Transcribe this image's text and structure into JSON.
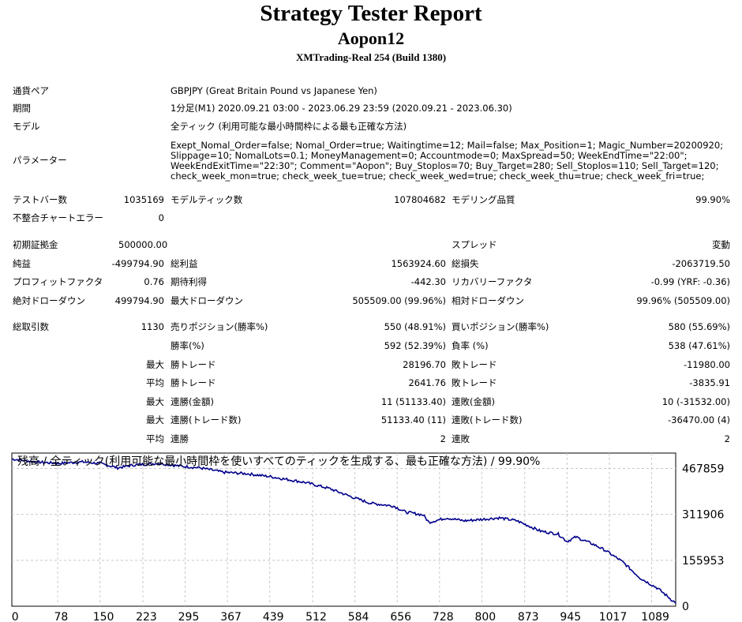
{
  "header": {
    "title": "Strategy Tester Report",
    "ea_name": "Aopon12",
    "server": "XMTrading-Real 254 (Build 1380)"
  },
  "info": {
    "symbol_label": "通貨ペア",
    "symbol_value": "GBPJPY (Great Britain Pound vs Japanese Yen)",
    "period_label": "期間",
    "period_value": "1分足(M1) 2020.09.21 03:00 - 2023.06.29 23:59 (2020.09.21 - 2023.06.30)",
    "model_label": "モデル",
    "model_value": "全ティック (利用可能な最小時間枠による最も正確な方法)",
    "params_label": "パラメーター",
    "params_lines": [
      "Exept_Nomal_Order=false; Nomal_Order=true; Waitingtime=12; Mail=false; Max_Position=1; Magic_Number=20200920;",
      "Slippage=10; NomalLots=0.1; MoneyManagement=0; Accountmode=0; MaxSpread=50; WeekEndTime=\"22:00\";",
      "WeekEndExitTime=\"22:30\"; Comment=\"Aopon\"; Buy_Stoplos=70; Buy_Target=280; Sell_Stoplos=110; Sell_Target=120;",
      "check_week_mon=true; check_week_tue=true; check_week_wed=true; check_week_thu=true; check_week_fri=true;"
    ]
  },
  "stats": {
    "bars_label": "テストバー数",
    "bars": "1035169",
    "ticks_label": "モデルティック数",
    "ticks": "107804682",
    "quality_label": "モデリング品質",
    "quality": "99.90%",
    "mismatch_label": "不整合チャートエラー",
    "mismatch": "0",
    "deposit_label": "初期証拠金",
    "deposit": "500000.00",
    "spread_label": "スプレッド",
    "spread": "変動",
    "net_label": "純益",
    "net": "-499794.90",
    "gross_profit_label": "総利益",
    "gross_profit": "1563924.60",
    "gross_loss_label": "総損失",
    "gross_loss": "-2063719.50",
    "pf_label": "プロフィットファクタ",
    "pf": "0.76",
    "expected_label": "期待利得",
    "expected": "-442.30",
    "recovery_label": "リカバリーファクタ",
    "recovery": "-0.99 (YRF: -0.36)",
    "abs_dd_label": "絶対ドローダウン",
    "abs_dd": "499794.90",
    "max_dd_label": "最大ドローダウン",
    "max_dd": "505509.00 (99.96%)",
    "rel_dd_label": "相対ドローダウン",
    "rel_dd": "99.96% (505509.00)",
    "trades_label": "総取引数",
    "trades": "1130",
    "short_label": "売りポジション(勝率%)",
    "short": "550 (48.91%)",
    "long_label": "買いポジション(勝率%)",
    "long": "580 (55.69%)",
    "win_rate_label": "勝率(%)",
    "win_rate": "592 (52.39%)",
    "loss_rate_label": "負率 (%)",
    "loss_rate": "538 (47.61%)",
    "max_prefix": "最大",
    "avg_prefix": "平均",
    "largest_win_label": "勝トレード",
    "largest_win": "28196.70",
    "largest_loss_label": "敗トレード",
    "largest_loss": "-11980.00",
    "avg_win_label": "勝トレード",
    "avg_win": "2641.76",
    "avg_loss_label": "敗トレード",
    "avg_loss": "-3835.91",
    "max_cons_wins_amt_label": "連勝(金額)",
    "max_cons_wins_amt": "11 (51133.40)",
    "max_cons_losses_amt_label": "連敗(金額)",
    "max_cons_losses_amt": "10 (-31532.00)",
    "max_cons_wins_cnt_label": "連勝(トレード数)",
    "max_cons_wins_cnt": "51133.40 (11)",
    "max_cons_losses_cnt_label": "連敗(トレード数)",
    "max_cons_losses_cnt": "-36470.00 (4)",
    "avg_cons_wins_label": "連勝",
    "avg_cons_wins": "2",
    "avg_cons_losses_label": "連敗",
    "avg_cons_losses": "2"
  },
  "chart_data": {
    "type": "line",
    "title": "残高 / 全ティック(利用可能な最小時間枠を使いすべてのティックを生成する、最も正確な方法) / 99.90%",
    "x_ticks": [
      "0",
      "78",
      "150",
      "223",
      "295",
      "367",
      "439",
      "512",
      "584",
      "656",
      "728",
      "800",
      "873",
      "945",
      "1017",
      "1089"
    ],
    "y_ticks": [
      "467859",
      "311906",
      "155953",
      "0"
    ],
    "xlim": [
      0,
      1130
    ],
    "ylim": [
      0,
      520000
    ],
    "grid": true,
    "line_color": "#00008B",
    "series": [
      {
        "x": [
          0,
          40,
          80,
          120,
          150,
          180,
          210,
          250,
          290,
          320,
          360,
          400,
          440,
          470,
          500,
          540,
          580,
          610,
          650,
          670,
          700,
          710,
          740,
          770,
          800,
          830,
          860,
          900,
          930,
          945,
          960,
          990,
          1010,
          1040,
          1070,
          1100,
          1130
        ],
        "y": [
          500000,
          490000,
          485000,
          490000,
          485000,
          470000,
          480000,
          485000,
          475000,
          470000,
          455000,
          450000,
          440000,
          430000,
          420000,
          400000,
          370000,
          350000,
          340000,
          320000,
          310000,
          285000,
          300000,
          290000,
          295000,
          300000,
          290000,
          255000,
          245000,
          220000,
          235000,
          210000,
          190000,
          150000,
          95000,
          60000,
          10000
        ]
      }
    ]
  }
}
